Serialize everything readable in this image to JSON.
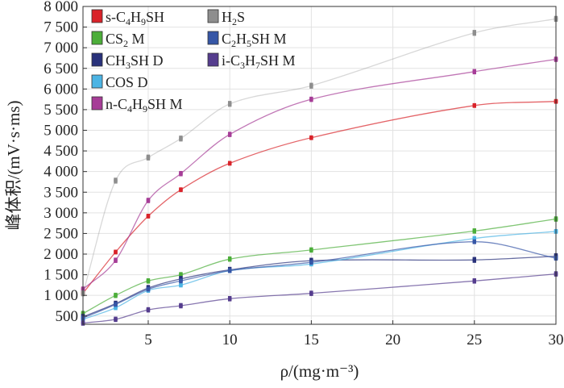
{
  "chart_data": {
    "type": "scatter",
    "xlabel": "ρ/(mg·m⁻³)",
    "ylabel": "峰体积/(mV·s·ms)",
    "xlim": [
      1,
      30
    ],
    "ylim": [
      300,
      8000
    ],
    "x_ticks": [
      5,
      10,
      15,
      20,
      25,
      30
    ],
    "x_tick_labels": [
      "5",
      "10",
      "15",
      "20",
      "25",
      "30"
    ],
    "y_ticks": [
      500,
      1000,
      1500,
      2000,
      2500,
      3000,
      3500,
      4000,
      4500,
      5000,
      5500,
      6000,
      6500,
      7000,
      7500,
      8000
    ],
    "y_tick_labels": [
      "500",
      "1 000",
      "1 500",
      "2 000",
      "2 500",
      "3 000",
      "3 500",
      "4 000",
      "4 500",
      "5 000",
      "5 500",
      "6 000",
      "6 500",
      "7 000",
      "7 500",
      "8 000"
    ],
    "grid": true,
    "legend_position": "top-left",
    "x": [
      1,
      3,
      5,
      7,
      10,
      15,
      25,
      30
    ],
    "series": [
      {
        "name": "s-C4H9SH",
        "legend": [
          "s-C",
          "4",
          "H",
          "9",
          "SH"
        ],
        "color": "#d9232a",
        "values": [
          1050,
          2050,
          2920,
          3560,
          4200,
          4820,
          5600,
          5700
        ]
      },
      {
        "name": "CS2 M",
        "legend": [
          "CS",
          "2",
          " M"
        ],
        "color": "#4cae3a",
        "values": [
          560,
          1000,
          1350,
          1500,
          1880,
          2100,
          2560,
          2850
        ]
      },
      {
        "name": "CH3SH D",
        "legend": [
          "CH",
          "3",
          "SH D"
        ],
        "color": "#28317a",
        "values": [
          480,
          800,
          1180,
          1400,
          1620,
          1840,
          1860,
          1950
        ]
      },
      {
        "name": "COS D",
        "legend": [
          "COS D"
        ],
        "color": "#4cb4e4",
        "values": [
          420,
          700,
          1120,
          1250,
          1600,
          1760,
          2380,
          2550
        ]
      },
      {
        "name": "n-C4H9SH M",
        "legend": [
          "n-C",
          "4",
          "H",
          "9",
          "SH M"
        ],
        "color": "#a63d97",
        "values": [
          1150,
          1850,
          3300,
          3950,
          4900,
          5750,
          6420,
          6720
        ]
      },
      {
        "name": "H2S",
        "legend": [
          "H",
          "2",
          "S"
        ],
        "color": "#8e8e8e",
        "values": [
          1050,
          3780,
          4340,
          4800,
          5640,
          6080,
          7360,
          7700
        ]
      },
      {
        "name": "C2H5SH M",
        "legend": [
          "C",
          "2",
          "H",
          "5",
          "SH M"
        ],
        "color": "#3656a6",
        "values": [
          450,
          780,
          1150,
          1350,
          1600,
          1800,
          2300,
          1900
        ]
      },
      {
        "name": "i-C3H7SH M",
        "legend": [
          "i-C",
          "3",
          "H",
          "7",
          "SH M"
        ],
        "color": "#553d8e",
        "values": [
          330,
          420,
          650,
          750,
          920,
          1050,
          1350,
          1520
        ]
      }
    ]
  }
}
